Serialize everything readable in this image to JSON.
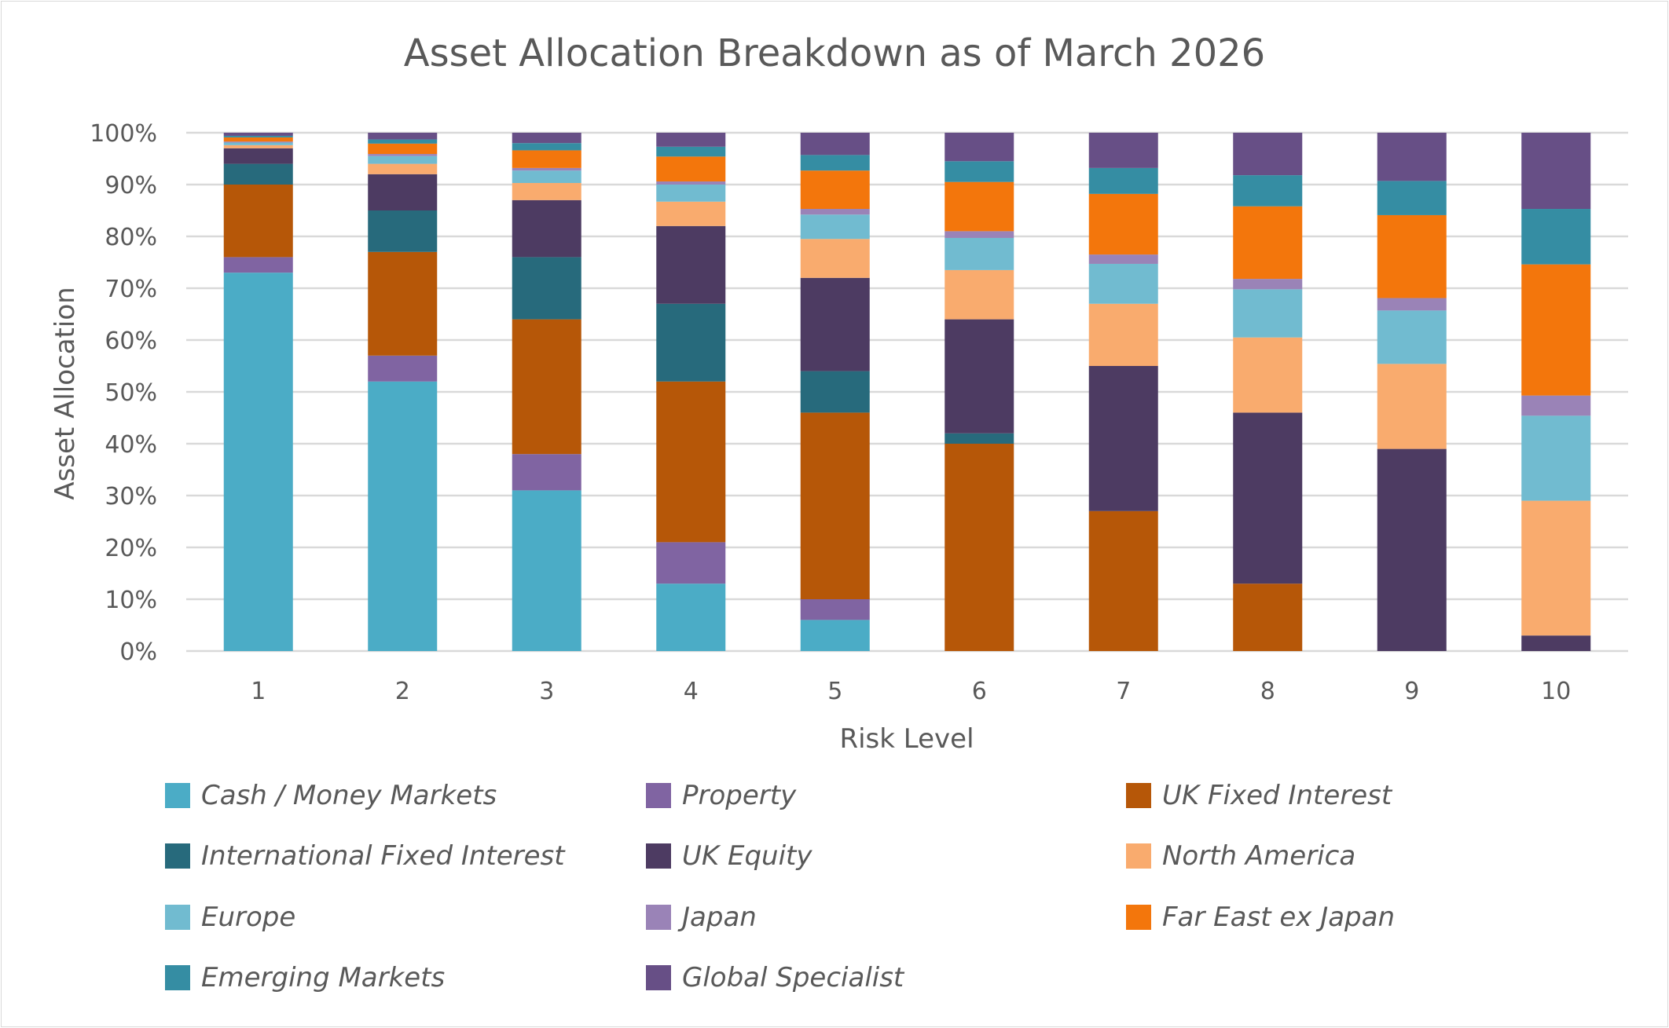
{
  "chart_data": {
    "type": "bar",
    "stacked": true,
    "title": "Asset Allocation Breakdown as of March 2026",
    "xlabel": "Risk Level",
    "ylabel": "Asset Allocation",
    "ylim": [
      0,
      100
    ],
    "yticks": [
      "0%",
      "10%",
      "20%",
      "30%",
      "40%",
      "50%",
      "60%",
      "70%",
      "80%",
      "90%",
      "100%"
    ],
    "grid": true,
    "legend_position": "bottom",
    "categories": [
      "1",
      "2",
      "3",
      "4",
      "5",
      "6",
      "7",
      "8",
      "9",
      "10"
    ],
    "series": [
      {
        "name": "Cash / Money Markets",
        "color": "#4BACC6",
        "values": [
          73,
          52,
          31,
          13,
          6,
          0,
          0,
          0,
          0,
          0
        ]
      },
      {
        "name": "Property",
        "color": "#8064A2",
        "values": [
          3,
          5,
          7,
          8,
          4,
          0,
          0,
          0,
          0,
          0
        ]
      },
      {
        "name": "UK Fixed Interest",
        "color": "#B65708",
        "values": [
          14,
          20,
          26,
          31,
          36,
          40,
          27,
          13,
          0,
          0
        ]
      },
      {
        "name": "International Fixed Interest",
        "color": "#276A7C",
        "values": [
          4,
          8,
          12,
          15,
          8,
          2,
          0,
          0,
          0,
          0
        ]
      },
      {
        "name": "UK Equity",
        "color": "#4D3B62",
        "values": [
          3,
          7,
          11,
          15,
          18,
          22,
          28,
          33,
          39,
          3
        ]
      },
      {
        "name": "North America",
        "color": "#F9AB6E",
        "values": [
          0.6,
          2,
          3.3,
          4.7,
          7.5,
          9.5,
          12,
          14.5,
          16.4,
          26
        ]
      },
      {
        "name": "Europe",
        "color": "#71BBD0",
        "values": [
          0.5,
          1.5,
          2.4,
          3.3,
          4.7,
          6.2,
          7.7,
          9.3,
          10.3,
          16.4
        ]
      },
      {
        "name": "Japan",
        "color": "#9A83B7",
        "values": [
          0.2,
          0.4,
          0.5,
          0.6,
          1.1,
          1.3,
          1.8,
          2,
          2.4,
          3.9
        ]
      },
      {
        "name": "Far East ex Japan",
        "color": "#F3760C",
        "values": [
          0.8,
          2,
          3.4,
          4.8,
          7.4,
          9.5,
          11.7,
          14,
          16,
          25.3
        ]
      },
      {
        "name": "Emerging Markets",
        "color": "#358DA3",
        "values": [
          0.3,
          0.8,
          1.4,
          1.9,
          3,
          4,
          5,
          6,
          6.6,
          10.7
        ]
      },
      {
        "name": "Global Specialist",
        "color": "#674F86",
        "values": [
          0.6,
          1.3,
          2,
          2.7,
          4.3,
          5.5,
          6.8,
          8.2,
          9.3,
          14.7
        ]
      }
    ]
  }
}
